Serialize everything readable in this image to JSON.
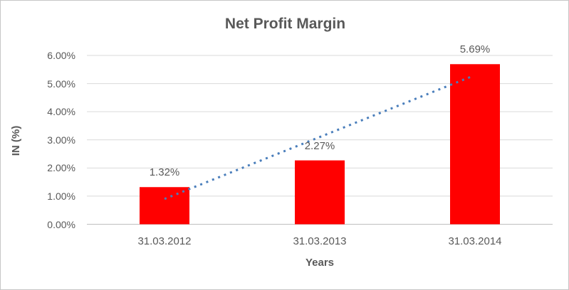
{
  "chart_data": {
    "type": "bar",
    "title": "Net Profit Margin",
    "xlabel": "Years",
    "ylabel": "IN (%)",
    "categories": [
      "31.03.2012",
      "31.03.2013",
      "31.03.2014"
    ],
    "series": [
      {
        "name": "Net Profit Margin",
        "values": [
          1.32,
          2.27,
          5.69
        ]
      }
    ],
    "data_labels": [
      "1.32%",
      "2.27%",
      "5.69%"
    ],
    "ylim": [
      0,
      6
    ],
    "ytick_step": 1,
    "ytick_labels": [
      "0.00%",
      "1.00%",
      "2.00%",
      "3.00%",
      "4.00%",
      "5.00%",
      "6.00%"
    ],
    "grid": true,
    "legend": "none",
    "trendline": {
      "type": "linear",
      "style": "dotted",
      "start_value": 0.9,
      "end_value": 5.26
    }
  },
  "colors": {
    "bar": "#FF0000",
    "trendline": "#4A7EBB",
    "gridline": "#D9D9D9",
    "axis_line": "#BFBFBF",
    "text": "#595959",
    "border": "#C6C6C6",
    "background": "#FFFFFF"
  }
}
